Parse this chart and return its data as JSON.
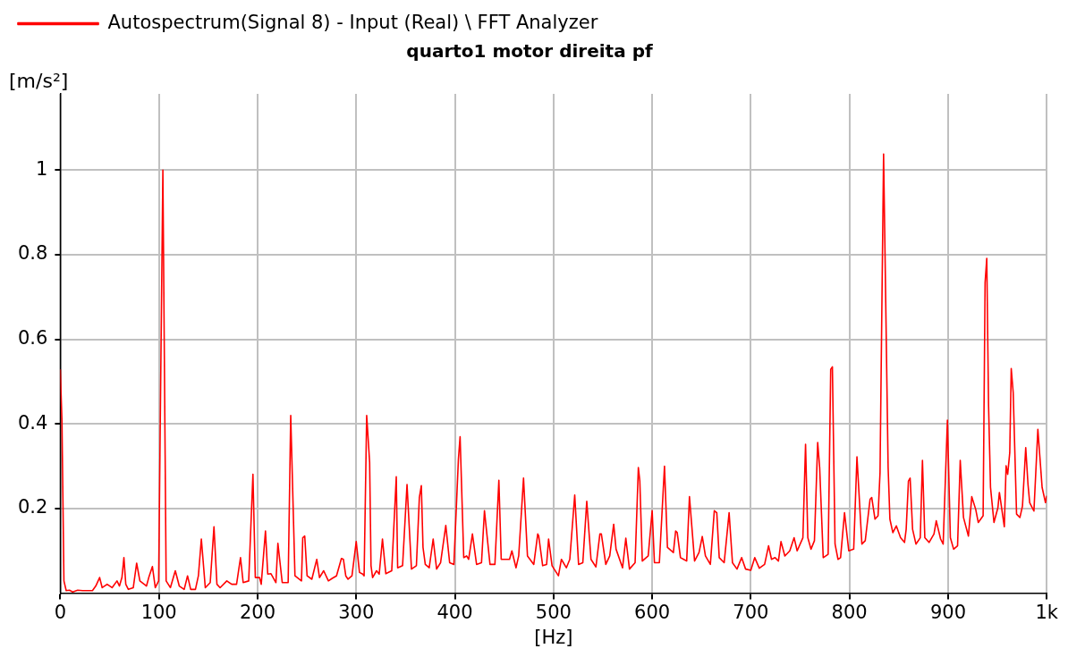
{
  "chart_data": {
    "type": "line",
    "title": "quarto1 motor direita pf",
    "xlabel": "[Hz]",
    "ylabel": "[m/s²]",
    "legend": "top",
    "grid": true,
    "marker": "none",
    "line_style": "solid",
    "xlim": [
      0,
      1000
    ],
    "xticks": [
      0,
      100,
      200,
      300,
      400,
      500,
      600,
      700,
      800,
      900,
      {
        "value": 1000,
        "label": "1k"
      }
    ],
    "ylim": [
      0,
      1.18
    ],
    "yticks": [
      0.2,
      0.4,
      0.6,
      0.8,
      1
    ],
    "x": [
      0,
      1.7,
      3.7,
      6,
      9.3,
      12.6,
      17.6,
      22.6,
      32.6,
      36,
      39.9,
      42.5,
      47.5,
      52.5,
      57.5,
      60,
      62.5,
      64.5,
      66.4,
      69,
      74,
      77.4,
      80.7,
      87.4,
      89.7,
      93.4,
      96.3,
      99.7,
      104,
      107.3,
      111.6,
      116.6,
      120.6,
      125.6,
      129,
      132.2,
      137,
      140,
      143,
      147,
      152,
      155.8,
      158.8,
      162,
      168.8,
      173.8,
      178.7,
      182.7,
      185.4,
      191,
      195.3,
      197.7,
      202,
      203.7,
      208,
      210.3,
      213.6,
      218.6,
      220.6,
      225,
      231,
      233.6,
      237.9,
      244.5,
      245.8,
      247.8,
      250.2,
      255,
      260,
      262.8,
      267,
      271.8,
      275.7,
      280,
      285,
      287,
      289.4,
      291.7,
      295.7,
      300,
      303.3,
      306.6,
      308,
      310.6,
      313.6,
      315,
      316.6,
      320.6,
      323.3,
      326.6,
      330,
      336,
      340.6,
      342,
      347,
      351.5,
      356,
      361,
      364,
      366,
      367.7,
      370,
      374,
      378,
      381.5,
      385.5,
      390.8,
      394.7,
      399,
      403.6,
      405.3,
      409,
      411.9,
      414,
      417.8,
      422,
      427,
      430,
      435.6,
      440.6,
      444.6,
      447,
      455.4,
      457.8,
      462,
      464.7,
      469.6,
      473.6,
      480,
      484,
      485,
      489,
      493,
      495,
      498.5,
      505,
      508,
      513,
      516.5,
      521.5,
      525.4,
      529.7,
      533.7,
      538,
      543,
      547,
      548.5,
      553,
      557,
      561,
      563.4,
      570,
      573.3,
      577,
      582.7,
      586,
      587.5,
      590,
      596,
      600,
      602.3,
      607.3,
      612.5,
      615.5,
      621.5,
      623.8,
      625.4,
      628.7,
      635,
      637.8,
      643,
      647.5,
      650.8,
      654,
      659,
      663,
      665.5,
      668,
      673,
      678,
      681.4,
      686,
      690.7,
      694.7,
      700,
      704,
      708.6,
      714,
      718,
      721,
      724.6,
      728,
      730.6,
      734.5,
      739.5,
      743.9,
      747,
      752.8,
      755.5,
      757.8,
      761,
      764.5,
      767.8,
      769.8,
      773.4,
      778.4,
      781,
      782.7,
      785.4,
      788.4,
      791,
      795,
      799.3,
      804.3,
      807.6,
      812.6,
      816,
      820.9,
      822.6,
      825.9,
      829,
      831,
      834.6,
      839.2,
      841,
      844,
      847.5,
      851.8,
      855.8,
      857.5,
      859.8,
      861.5,
      864,
      867.4,
      871.8,
      874,
      876.4,
      880.7,
      885.7,
      888,
      892.4,
      895,
      899.3,
      902.3,
      905.6,
      909.6,
      912.3,
      915.6,
      920.6,
      924,
      928,
      930.6,
      935.5,
      937.5,
      939.2,
      941,
      943,
      946.5,
      950.5,
      952,
      957,
      958.8,
      960.4,
      962.5,
      964,
      966,
      969.4,
      972.8,
      975.4,
      978.7,
      981,
      982.7,
      987,
      991,
      995.3,
      998.7,
      1000
    ],
    "series": [
      {
        "name": "Autospectrum(Signal 8) - Input (Real) \\ FFT Analyzer",
        "color": "#ff0000",
        "values": [
          0.529,
          0.407,
          0.029,
          0.006,
          0.007,
          0.003,
          0.007,
          0.006,
          0.006,
          0.017,
          0.037,
          0.013,
          0.021,
          0.013,
          0.029,
          0.017,
          0.037,
          0.084,
          0.021,
          0.009,
          0.013,
          0.071,
          0.029,
          0.017,
          0.037,
          0.063,
          0.013,
          0.029,
          1.0,
          0.029,
          0.013,
          0.053,
          0.017,
          0.009,
          0.041,
          0.009,
          0.009,
          0.041,
          0.128,
          0.013,
          0.025,
          0.157,
          0.021,
          0.013,
          0.029,
          0.021,
          0.021,
          0.084,
          0.025,
          0.029,
          0.281,
          0.037,
          0.037,
          0.021,
          0.147,
          0.045,
          0.046,
          0.025,
          0.118,
          0.025,
          0.025,
          0.42,
          0.041,
          0.029,
          0.131,
          0.135,
          0.041,
          0.033,
          0.08,
          0.037,
          0.053,
          0.029,
          0.035,
          0.041,
          0.082,
          0.08,
          0.041,
          0.033,
          0.041,
          0.122,
          0.049,
          0.045,
          0.041,
          0.42,
          0.309,
          0.065,
          0.037,
          0.053,
          0.045,
          0.128,
          0.046,
          0.053,
          0.275,
          0.06,
          0.065,
          0.257,
          0.057,
          0.065,
          0.226,
          0.254,
          0.108,
          0.068,
          0.06,
          0.128,
          0.057,
          0.072,
          0.16,
          0.072,
          0.068,
          0.317,
          0.37,
          0.084,
          0.088,
          0.08,
          0.14,
          0.068,
          0.072,
          0.195,
          0.068,
          0.068,
          0.267,
          0.08,
          0.08,
          0.1,
          0.06,
          0.088,
          0.272,
          0.088,
          0.068,
          0.14,
          0.135,
          0.065,
          0.068,
          0.128,
          0.065,
          0.041,
          0.08,
          0.06,
          0.08,
          0.232,
          0.068,
          0.072,
          0.217,
          0.08,
          0.062,
          0.14,
          0.14,
          0.068,
          0.088,
          0.163,
          0.104,
          0.06,
          0.13,
          0.057,
          0.072,
          0.297,
          0.265,
          0.076,
          0.088,
          0.195,
          0.072,
          0.072,
          0.3,
          0.108,
          0.096,
          0.147,
          0.143,
          0.084,
          0.076,
          0.228,
          0.076,
          0.096,
          0.134,
          0.088,
          0.068,
          0.195,
          0.19,
          0.084,
          0.072,
          0.19,
          0.072,
          0.057,
          0.084,
          0.057,
          0.054,
          0.084,
          0.059,
          0.068,
          0.112,
          0.08,
          0.084,
          0.076,
          0.122,
          0.088,
          0.1,
          0.131,
          0.1,
          0.131,
          0.352,
          0.131,
          0.104,
          0.124,
          0.356,
          0.297,
          0.084,
          0.092,
          0.529,
          0.535,
          0.116,
          0.08,
          0.084,
          0.19,
          0.1,
          0.104,
          0.322,
          0.116,
          0.124,
          0.222,
          0.226,
          0.175,
          0.183,
          0.285,
          1.038,
          0.297,
          0.175,
          0.143,
          0.159,
          0.131,
          0.12,
          0.151,
          0.265,
          0.272,
          0.151,
          0.116,
          0.131,
          0.314,
          0.131,
          0.12,
          0.14,
          0.171,
          0.128,
          0.116,
          0.409,
          0.131,
          0.104,
          0.112,
          0.314,
          0.179,
          0.135,
          0.228,
          0.198,
          0.167,
          0.183,
          0.734,
          0.791,
          0.446,
          0.25,
          0.167,
          0.202,
          0.238,
          0.157,
          0.301,
          0.281,
          0.332,
          0.531,
          0.474,
          0.187,
          0.179,
          0.206,
          0.344,
          0.257,
          0.214,
          0.194,
          0.387,
          0.25,
          0.214,
          0.23
        ]
      }
    ]
  }
}
